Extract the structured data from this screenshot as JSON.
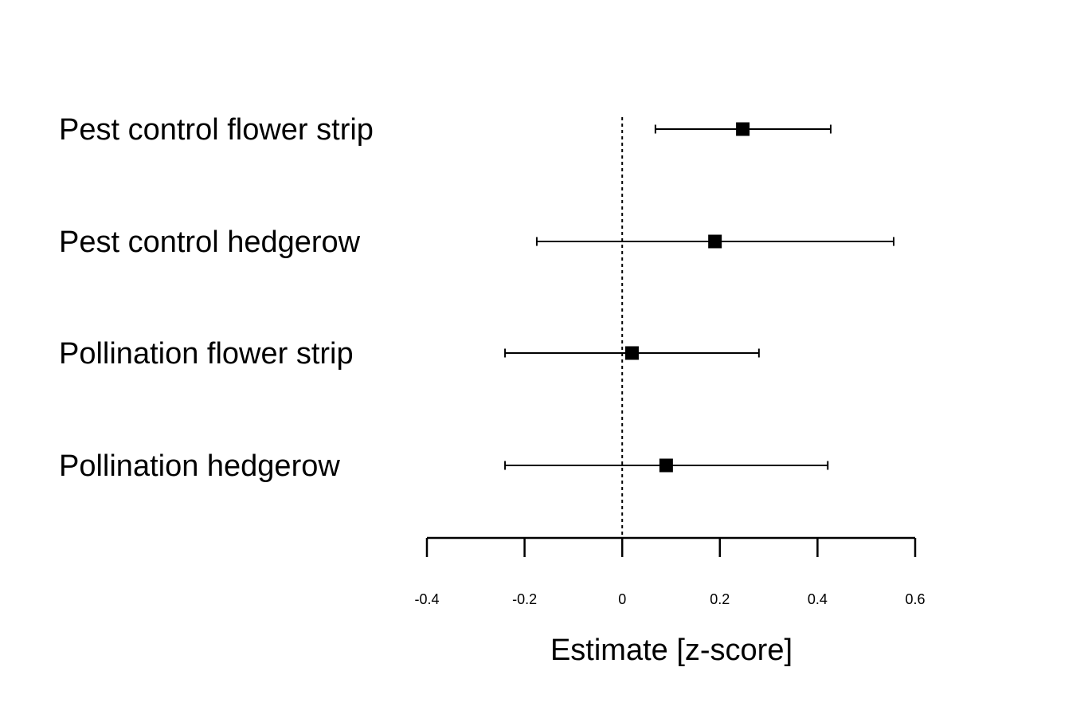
{
  "chart_data": {
    "type": "forest",
    "title": "",
    "xlabel": "Estimate [z-score]",
    "ylabel": "",
    "xlim": [
      -0.4,
      0.6
    ],
    "xticks": [
      -0.4,
      -0.2,
      0,
      0.2,
      0.4,
      0.6
    ],
    "xtick_labels": [
      "-0.4",
      "-0.2",
      "0",
      "0.2",
      "0.4",
      "0.6"
    ],
    "reference_line": 0,
    "reference_line_style": "dotted",
    "grid": false,
    "marker": "square",
    "color": "#000000",
    "rows": [
      {
        "label": "Pest control flower strip",
        "estimate": 0.247,
        "lower": 0.068,
        "upper": 0.427
      },
      {
        "label": "Pest control hedgerow",
        "estimate": 0.19,
        "lower": -0.175,
        "upper": 0.556
      },
      {
        "label": "Pollination flower strip",
        "estimate": 0.02,
        "lower": -0.24,
        "upper": 0.28
      },
      {
        "label": "Pollination hedgerow",
        "estimate": 0.09,
        "lower": -0.24,
        "upper": 0.421
      }
    ]
  }
}
